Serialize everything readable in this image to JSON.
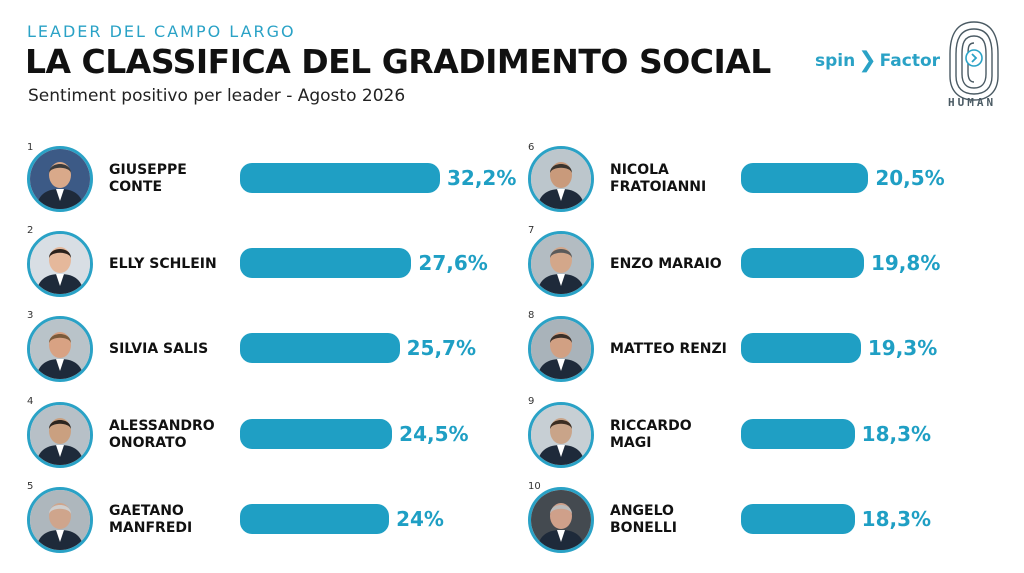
{
  "header": {
    "kicker": "LEADER DEL CAMPO LARGO",
    "title": "LA CLASSIFICA DEL GRADIMENTO SOCIAL",
    "subtitle": "Sentiment positivo per leader - Agosto 2026"
  },
  "brand": {
    "spin": "spin",
    "factor": "Factor",
    "human": "HUMAN"
  },
  "colors": {
    "accent": "#1f9fc4",
    "text": "#111111"
  },
  "chart_data": {
    "type": "bar",
    "title": "LA CLASSIFICA DEL GRADIMENTO SOCIAL",
    "subtitle": "Sentiment positivo per leader - Agosto 2026",
    "categories": [
      "GIUSEPPE CONTE",
      "ELLY SCHLEIN",
      "SILVIA SALIS",
      "ALESSANDRO ONORATO",
      "GAETANO MANFREDI",
      "NICOLA FRATOIANNI",
      "ENZO MARAIO",
      "MATTEO RENZI",
      "RICCARDO MAGI",
      "ANGELO BONELLI"
    ],
    "values": [
      32.2,
      27.6,
      25.7,
      24.5,
      24.0,
      20.5,
      19.8,
      19.3,
      18.3,
      18.3
    ],
    "ylim": [
      0,
      35
    ],
    "leaders": [
      {
        "rank": "1",
        "name": "GIUSEPPE CONTE",
        "label": "32,2%",
        "value": 32.2
      },
      {
        "rank": "2",
        "name": "ELLY SCHLEIN",
        "label": "27,6%",
        "value": 27.6
      },
      {
        "rank": "3",
        "name": "SILVIA SALIS",
        "label": "25,7%",
        "value": 25.7
      },
      {
        "rank": "4",
        "name": "ALESSANDRO ONORATO",
        "label": "24,5%",
        "value": 24.5
      },
      {
        "rank": "5",
        "name": "GAETANO MANFREDI",
        "label": "24%",
        "value": 24.0
      },
      {
        "rank": "6",
        "name": "NICOLA FRATOIANNI",
        "label": "20,5%",
        "value": 20.5
      },
      {
        "rank": "7",
        "name": "ENZO MARAIO",
        "label": "19,8%",
        "value": 19.8
      },
      {
        "rank": "8",
        "name": "MATTEO RENZI",
        "label": "19,3%",
        "value": 19.3
      },
      {
        "rank": "9",
        "name": "RICCARDO MAGI",
        "label": "18,3%",
        "value": 18.3
      },
      {
        "rank": "10",
        "name": "ANGELO BONELLI",
        "label": "18,3%",
        "value": 18.3
      }
    ]
  }
}
